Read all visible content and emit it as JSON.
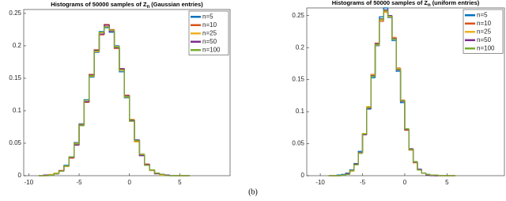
{
  "caption": "(b)",
  "chart_data": [
    {
      "type": "histogram",
      "title": "Histograms of 50000 samples of Z",
      "title_subscript": "n",
      "title_suffix": "(Gaussian entries)",
      "bins": [
        -9,
        -8.5,
        -8,
        -7.5,
        -7,
        -6.5,
        -6,
        -5.5,
        -5,
        -4.5,
        -4,
        -3.5,
        -3,
        -2.5,
        -2,
        -1.5,
        -1,
        -0.5,
        0,
        0.5,
        1,
        1.5,
        2,
        2.5,
        3,
        3.5,
        4,
        4.5,
        5,
        5.5,
        6
      ],
      "series": [
        {
          "name": "n=5",
          "color": "#0072bd",
          "values": [
            0,
            0.001,
            0.001,
            0.003,
            0.007,
            0.016,
            0.029,
            0.051,
            0.08,
            0.117,
            0.152,
            0.19,
            0.222,
            0.228,
            0.221,
            0.2,
            0.16,
            0.12,
            0.086,
            0.055,
            0.031,
            0.016,
            0.008,
            0.004,
            0.002,
            0.001,
            0,
            0,
            0,
            0
          ]
        },
        {
          "name": "n=10",
          "color": "#d95319",
          "values": [
            0,
            0,
            0.001,
            0.003,
            0.008,
            0.015,
            0.027,
            0.048,
            0.077,
            0.113,
            0.156,
            0.194,
            0.217,
            0.233,
            0.225,
            0.196,
            0.164,
            0.124,
            0.084,
            0.053,
            0.033,
            0.018,
            0.009,
            0.004,
            0.002,
            0.001,
            0,
            0,
            0,
            0
          ]
        },
        {
          "name": "n=25",
          "color": "#edb120",
          "values": [
            0,
            0,
            0.002,
            0.004,
            0.007,
            0.014,
            0.028,
            0.05,
            0.079,
            0.116,
            0.153,
            0.191,
            0.22,
            0.23,
            0.224,
            0.199,
            0.162,
            0.121,
            0.087,
            0.052,
            0.032,
            0.017,
            0.008,
            0.004,
            0.001,
            0.001,
            0,
            0,
            0,
            0
          ]
        },
        {
          "name": "n=50",
          "color": "#7e2f8e",
          "values": [
            0,
            0.001,
            0.001,
            0.003,
            0.007,
            0.015,
            0.028,
            0.047,
            0.078,
            0.114,
            0.155,
            0.193,
            0.218,
            0.232,
            0.222,
            0.197,
            0.165,
            0.123,
            0.085,
            0.055,
            0.031,
            0.017,
            0.009,
            0.003,
            0.002,
            0.001,
            0,
            0,
            0,
            0
          ]
        },
        {
          "name": "n=100",
          "color": "#77ac30",
          "values": [
            0,
            0,
            0.001,
            0.003,
            0.007,
            0.015,
            0.029,
            0.049,
            0.077,
            0.116,
            0.154,
            0.192,
            0.221,
            0.229,
            0.224,
            0.198,
            0.163,
            0.122,
            0.084,
            0.054,
            0.033,
            0.016,
            0.009,
            0.004,
            0.002,
            0,
            0,
            0,
            0,
            0
          ]
        }
      ],
      "xlim": [
        -10.5,
        10
      ],
      "xticks": [
        -10,
        -5,
        0,
        5
      ],
      "ylim": [
        0,
        0.256
      ],
      "yticks": [
        0,
        0.05,
        0.1,
        0.15,
        0.2,
        0.25
      ],
      "legend": "northeast"
    },
    {
      "type": "histogram",
      "title": "Histograms of 50000 samples of Z",
      "title_subscript": "n",
      "title_suffix": "(uniform entries)",
      "bins": [
        -9,
        -8.5,
        -8,
        -7.5,
        -7,
        -6.5,
        -6,
        -5.5,
        -5,
        -4.5,
        -4,
        -3.5,
        -3,
        -2.5,
        -2,
        -1.5,
        -1,
        -0.5,
        0,
        0.5,
        1,
        1.5,
        2,
        2.5,
        3,
        3.5,
        4,
        4.5,
        5,
        5.5,
        6
      ],
      "series": [
        {
          "name": "n=5",
          "color": "#0072bd",
          "values": [
            0,
            0,
            0.001,
            0.002,
            0.004,
            0.009,
            0.019,
            0.038,
            0.066,
            0.104,
            0.153,
            0.203,
            0.248,
            0.262,
            0.247,
            0.211,
            0.163,
            0.114,
            0.073,
            0.042,
            0.022,
            0.01,
            0.004,
            0.002,
            0.001,
            0,
            0,
            0,
            0,
            0
          ]
        },
        {
          "name": "n=10",
          "color": "#d95319",
          "values": [
            0,
            0,
            0,
            0.001,
            0.003,
            0.008,
            0.017,
            0.035,
            0.064,
            0.107,
            0.158,
            0.207,
            0.241,
            0.257,
            0.25,
            0.216,
            0.168,
            0.118,
            0.071,
            0.04,
            0.021,
            0.009,
            0.004,
            0.001,
            0.001,
            0,
            0,
            0,
            0,
            0
          ]
        },
        {
          "name": "n=25",
          "color": "#edb120",
          "values": [
            0,
            0,
            0,
            0.001,
            0.003,
            0.007,
            0.018,
            0.036,
            0.066,
            0.108,
            0.157,
            0.204,
            0.243,
            0.255,
            0.248,
            0.215,
            0.167,
            0.117,
            0.073,
            0.041,
            0.02,
            0.009,
            0.004,
            0.002,
            0.001,
            0,
            0,
            0,
            0,
            0
          ]
        },
        {
          "name": "n=50",
          "color": "#7e2f8e",
          "values": [
            0,
            0,
            0,
            0.001,
            0.003,
            0.008,
            0.018,
            0.036,
            0.064,
            0.105,
            0.156,
            0.206,
            0.245,
            0.259,
            0.25,
            0.214,
            0.165,
            0.116,
            0.072,
            0.042,
            0.021,
            0.01,
            0.004,
            0.001,
            0,
            0,
            0,
            0,
            0,
            0
          ]
        },
        {
          "name": "n=100",
          "color": "#77ac30",
          "values": [
            0,
            0,
            0,
            0.001,
            0.002,
            0.008,
            0.017,
            0.035,
            0.065,
            0.106,
            0.155,
            0.205,
            0.244,
            0.258,
            0.249,
            0.213,
            0.166,
            0.117,
            0.073,
            0.041,
            0.022,
            0.009,
            0.004,
            0.002,
            0.001,
            0.001,
            0,
            0,
            0,
            0
          ]
        }
      ],
      "xlim": [
        -11.6,
        11.8
      ],
      "xticks": [
        -10,
        -5,
        0,
        5
      ],
      "ylim": [
        0,
        0.262
      ],
      "yticks": [
        0,
        0.05,
        0.1,
        0.15,
        0.2,
        0.25
      ],
      "legend": "northeast"
    }
  ]
}
